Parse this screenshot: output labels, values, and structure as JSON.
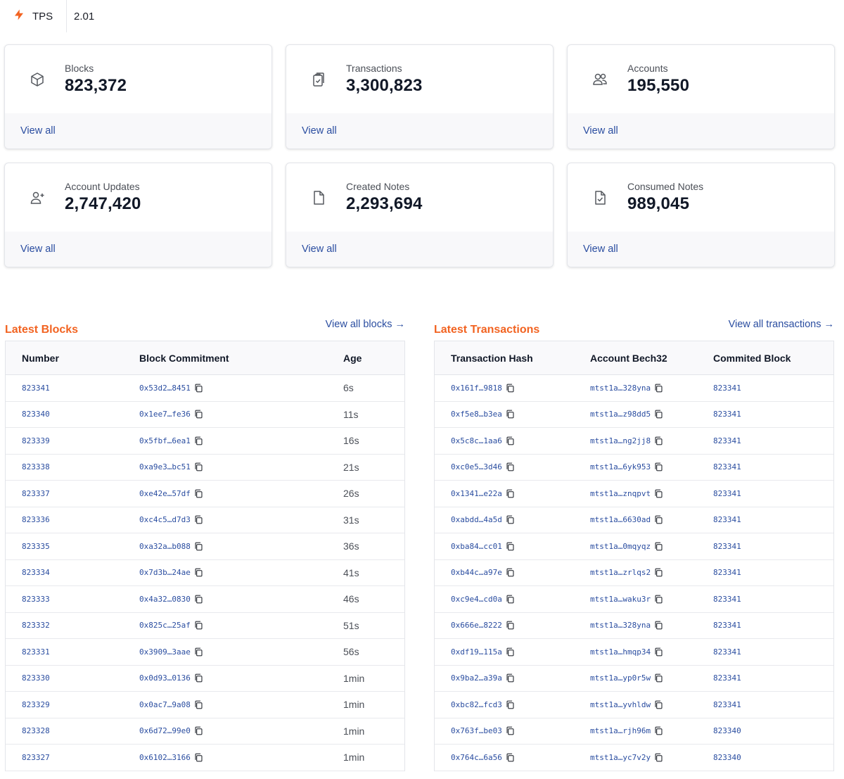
{
  "tps": {
    "label": "TPS",
    "value": "2.01",
    "icon": "lightning-icon",
    "icon_color": "#f26321"
  },
  "cards": [
    {
      "label": "Blocks",
      "value": "823,372",
      "link": "View all",
      "icon": "cube-icon"
    },
    {
      "label": "Transactions",
      "value": "3,300,823",
      "link": "View all",
      "icon": "clipboard-check-icon"
    },
    {
      "label": "Accounts",
      "value": "195,550",
      "link": "View all",
      "icon": "users-icon"
    },
    {
      "label": "Account Updates",
      "value": "2,747,420",
      "link": "View all",
      "icon": "user-plus-icon"
    },
    {
      "label": "Created Notes",
      "value": "2,293,694",
      "link": "View all",
      "icon": "file-icon"
    },
    {
      "label": "Consumed Notes",
      "value": "989,045",
      "link": "View all",
      "icon": "file-check-icon"
    }
  ],
  "blocks": {
    "title": "Latest Blocks",
    "view_all": "View all blocks →",
    "columns": [
      "Number",
      "Block Commitment",
      "Age"
    ],
    "rows": [
      {
        "number": "823341",
        "commitment": "0x53d2…8451",
        "age": "6s"
      },
      {
        "number": "823340",
        "commitment": "0x1ee7…fe36",
        "age": "11s"
      },
      {
        "number": "823339",
        "commitment": "0x5fbf…6ea1",
        "age": "16s"
      },
      {
        "number": "823338",
        "commitment": "0xa9e3…bc51",
        "age": "21s"
      },
      {
        "number": "823337",
        "commitment": "0xe42e…57df",
        "age": "26s"
      },
      {
        "number": "823336",
        "commitment": "0xc4c5…d7d3",
        "age": "31s"
      },
      {
        "number": "823335",
        "commitment": "0xa32a…b088",
        "age": "36s"
      },
      {
        "number": "823334",
        "commitment": "0x7d3b…24ae",
        "age": "41s"
      },
      {
        "number": "823333",
        "commitment": "0x4a32…0830",
        "age": "46s"
      },
      {
        "number": "823332",
        "commitment": "0x825c…25af",
        "age": "51s"
      },
      {
        "number": "823331",
        "commitment": "0x3909…3aae",
        "age": "56s"
      },
      {
        "number": "823330",
        "commitment": "0x0d93…0136",
        "age": "1min"
      },
      {
        "number": "823329",
        "commitment": "0x0ac7…9a08",
        "age": "1min"
      },
      {
        "number": "823328",
        "commitment": "0x6d72…99e0",
        "age": "1min"
      },
      {
        "number": "823327",
        "commitment": "0x6102…3166",
        "age": "1min"
      }
    ]
  },
  "transactions": {
    "title": "Latest Transactions",
    "view_all": "View all transactions →",
    "columns": [
      "Transaction Hash",
      "Account Bech32",
      "Commited Block"
    ],
    "rows": [
      {
        "hash": "0x161f…9818",
        "account": "mtst1a…328yna",
        "block": "823341"
      },
      {
        "hash": "0xf5e8…b3ea",
        "account": "mtst1a…z98dd5",
        "block": "823341"
      },
      {
        "hash": "0x5c8c…1aa6",
        "account": "mtst1a…ng2jj8",
        "block": "823341"
      },
      {
        "hash": "0xc0e5…3d46",
        "account": "mtst1a…6yk953",
        "block": "823341"
      },
      {
        "hash": "0x1341…e22a",
        "account": "mtst1a…znqpvt",
        "block": "823341"
      },
      {
        "hash": "0xabdd…4a5d",
        "account": "mtst1a…6630ad",
        "block": "823341"
      },
      {
        "hash": "0xba84…cc01",
        "account": "mtst1a…0mqyqz",
        "block": "823341"
      },
      {
        "hash": "0xb44c…a97e",
        "account": "mtst1a…zrlqs2",
        "block": "823341"
      },
      {
        "hash": "0xc9e4…cd0a",
        "account": "mtst1a…waku3r",
        "block": "823341"
      },
      {
        "hash": "0x666e…8222",
        "account": "mtst1a…328yna",
        "block": "823341"
      },
      {
        "hash": "0xdf19…115a",
        "account": "mtst1a…hmqp34",
        "block": "823341"
      },
      {
        "hash": "0x9ba2…a39a",
        "account": "mtst1a…yp0r5w",
        "block": "823341"
      },
      {
        "hash": "0xbc82…fcd3",
        "account": "mtst1a…yvhldw",
        "block": "823341"
      },
      {
        "hash": "0x763f…be03",
        "account": "mtst1a…rjh96m",
        "block": "823340"
      },
      {
        "hash": "0x764c…6a56",
        "account": "mtst1a…yc7v2y",
        "block": "823340"
      }
    ]
  }
}
